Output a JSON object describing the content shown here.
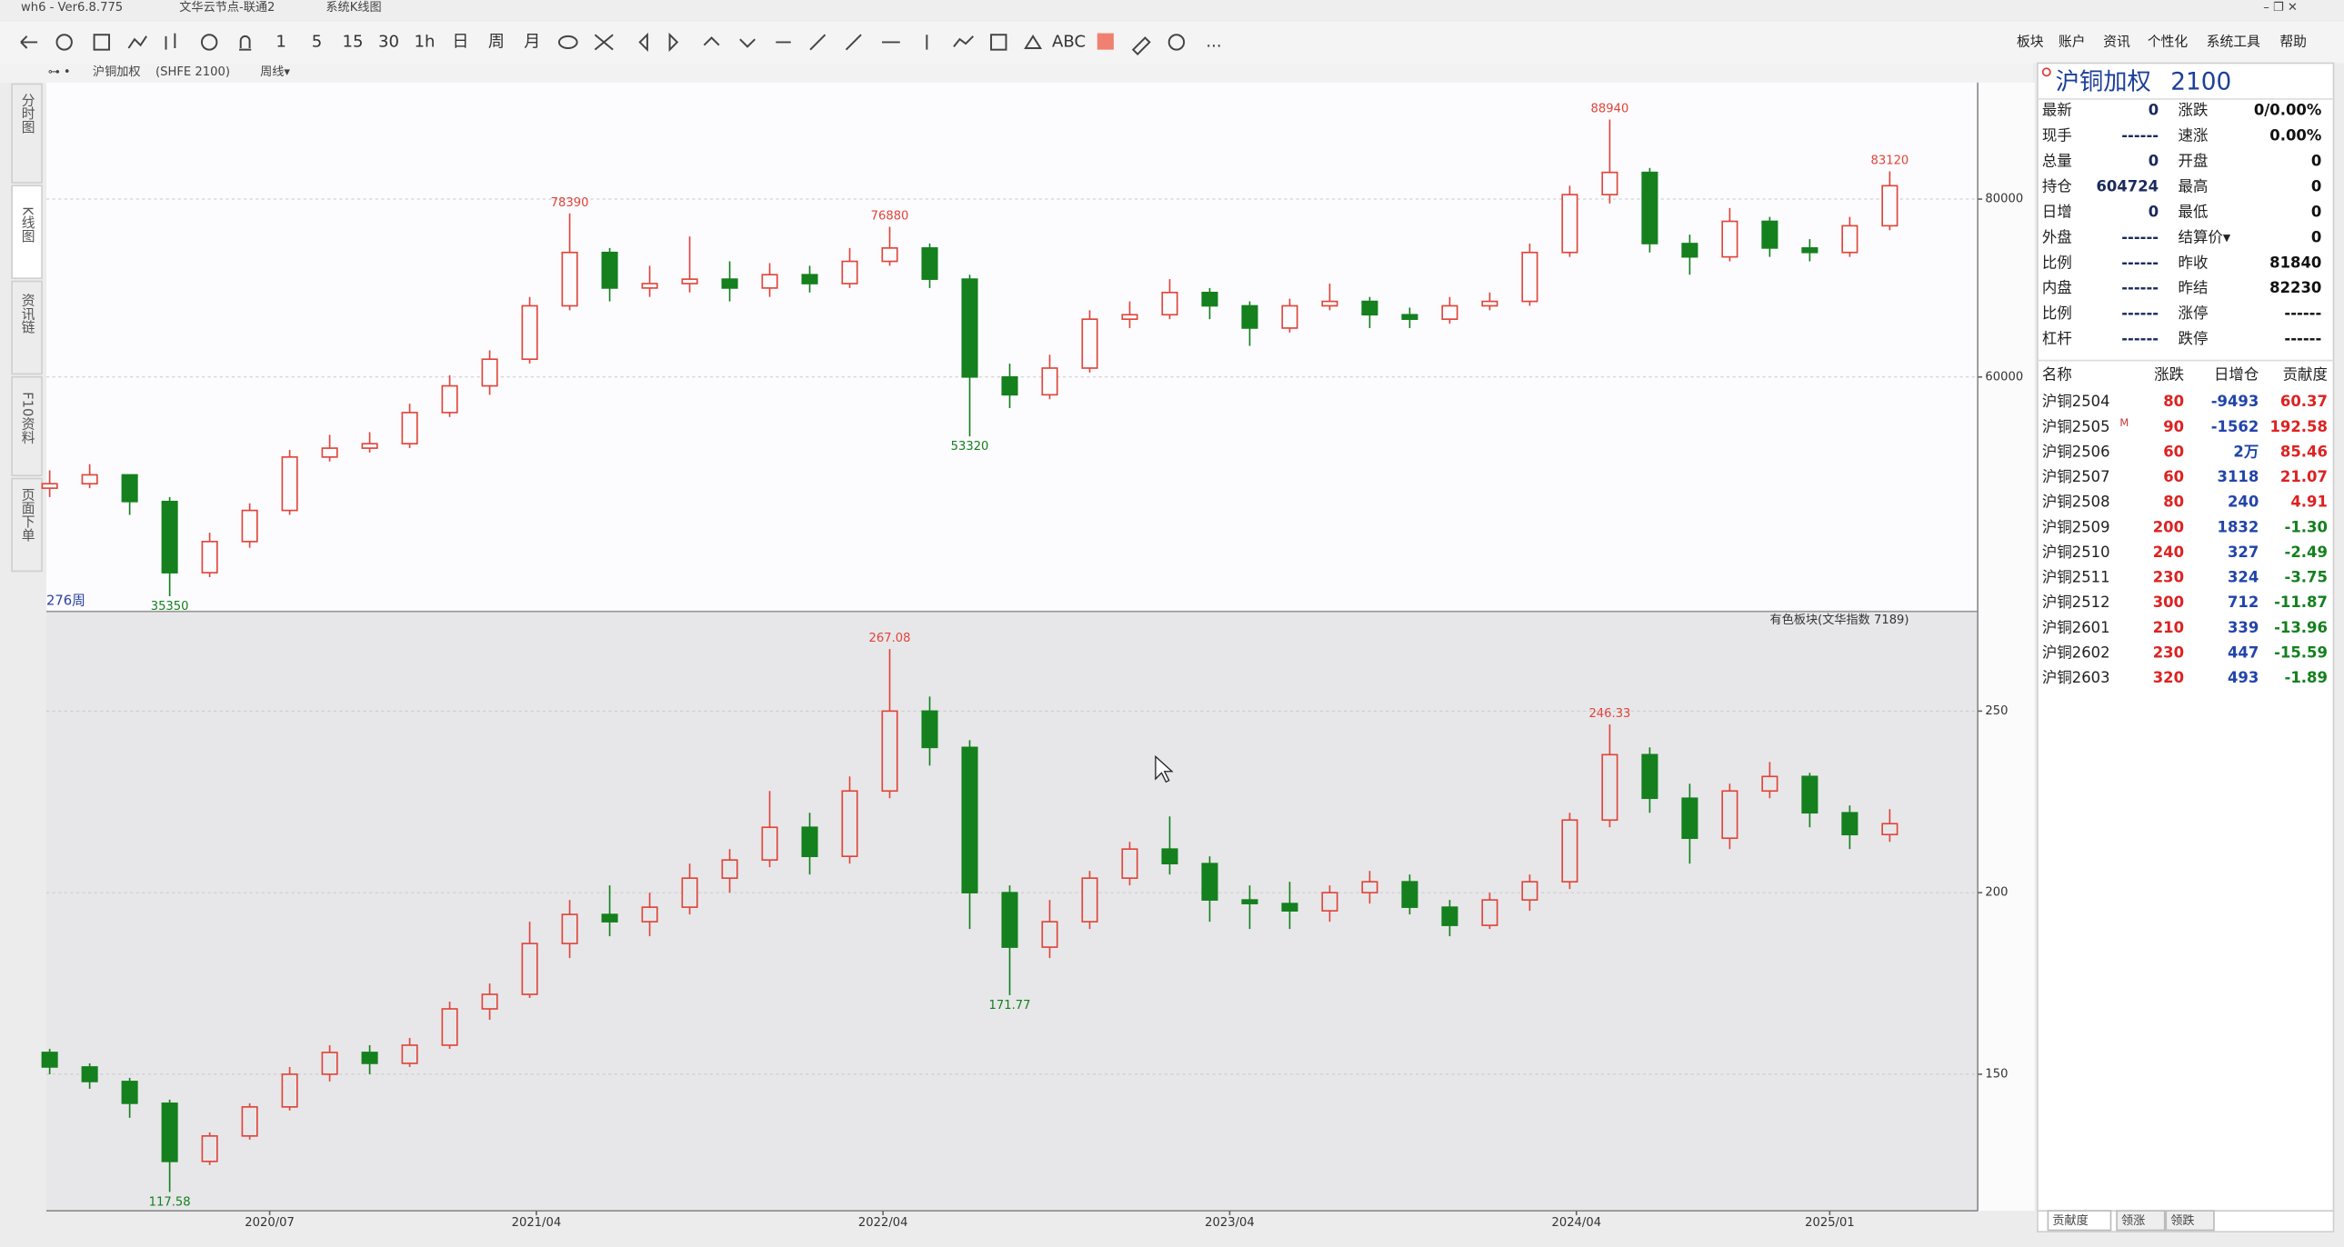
{
  "window": {
    "title": "wh6 - Ver6.8.775",
    "node": "文华云节点-联通2",
    "view": "系统K线图",
    "menus": [
      "板块",
      "账户",
      "资讯",
      "个性化",
      "系统工具",
      "帮助"
    ]
  },
  "toolbar": [
    "1",
    "5",
    "15",
    "30",
    "1h",
    "日",
    "周",
    "月",
    "ABC",
    "..."
  ],
  "side_tabs": [
    "分时图",
    "K线图",
    "资讯链",
    "F10资料",
    "页面下单"
  ],
  "header": {
    "symbol": "沪铜加权",
    "code": "(SHFE 2100)",
    "period": "周线▾"
  },
  "bar_count": "276周",
  "chart_data": [
    {
      "type": "candlestick",
      "up_color": "#e0443a",
      "down_color": "#14801e",
      "background": "#fcfcfe",
      "grid": true,
      "xlim": [
        -0.5,
        289.2
      ],
      "ylim": [
        33800,
        93100
      ],
      "yticks": [
        60000,
        80000
      ],
      "x": [
        0,
        6,
        12,
        18,
        24,
        30,
        36,
        42,
        48,
        54,
        60,
        66,
        72,
        78,
        84,
        90,
        96,
        102,
        108,
        114,
        120,
        126,
        132,
        138,
        144,
        150,
        156,
        162,
        168,
        174,
        180,
        186,
        192,
        198,
        204,
        210,
        216,
        222,
        228,
        234,
        240,
        246,
        252,
        258,
        264,
        270,
        276
      ],
      "open": [
        47500,
        48000,
        49000,
        46000,
        38000,
        41500,
        45000,
        51000,
        52000,
        52500,
        56000,
        59000,
        62000,
        68000,
        74000,
        70000,
        70500,
        71000,
        70000,
        71500,
        70500,
        73000,
        74500,
        71000,
        60000,
        58000,
        61000,
        66500,
        67000,
        69500,
        68000,
        65500,
        68000,
        68500,
        67000,
        66500,
        68000,
        68500,
        74000,
        80500,
        83000,
        75000,
        73500,
        77500,
        74500,
        74000,
        77000
      ],
      "high": [
        49500,
        50200,
        49000,
        46500,
        42500,
        45800,
        51800,
        53500,
        53800,
        57000,
        60200,
        63000,
        69000,
        78390,
        74500,
        72500,
        75800,
        73000,
        72800,
        72500,
        74500,
        76880,
        75000,
        71500,
        61500,
        62500,
        67500,
        68500,
        71000,
        70000,
        68500,
        68800,
        70500,
        69000,
        67800,
        69000,
        69500,
        75000,
        81500,
        88940,
        83500,
        76000,
        79000,
        78000,
        75500,
        78000,
        83120
      ],
      "low": [
        46500,
        47500,
        44500,
        35350,
        37500,
        40800,
        44500,
        50500,
        51500,
        52000,
        55500,
        58000,
        61500,
        67500,
        68500,
        69000,
        69500,
        68500,
        69000,
        69500,
        70000,
        72500,
        70000,
        53320,
        56500,
        57500,
        60500,
        65500,
        66500,
        66500,
        63500,
        65000,
        67500,
        65500,
        65500,
        66000,
        67500,
        68000,
        73500,
        79500,
        74000,
        71500,
        73000,
        73500,
        73000,
        73500,
        76500
      ],
      "close": [
        48000,
        49000,
        46000,
        38000,
        41500,
        45000,
        51000,
        52000,
        52500,
        56000,
        59000,
        62000,
        68000,
        74000,
        70000,
        70500,
        71000,
        70000,
        71500,
        70500,
        73000,
        74500,
        71000,
        60000,
        58000,
        61000,
        66500,
        67000,
        69500,
        68000,
        65500,
        68000,
        68500,
        67000,
        66500,
        68000,
        68500,
        74000,
        80500,
        83000,
        75000,
        73500,
        77500,
        74500,
        74000,
        77000,
        81500
      ],
      "annotations": [
        {
          "x": 78,
          "value": 78390,
          "position": "above"
        },
        {
          "x": 126,
          "value": 76880,
          "position": "above"
        },
        {
          "x": 234,
          "value": 88940,
          "position": "above"
        },
        {
          "x": 276,
          "value": 83120,
          "position": "above"
        },
        {
          "x": 138,
          "value": 53320,
          "position": "below"
        },
        {
          "x": 18,
          "value": 35350,
          "position": "below"
        }
      ]
    },
    {
      "type": "candlestick",
      "title": "有色板块(文华指数 7189)",
      "up_color": "#e0443a",
      "down_color": "#14801e",
      "background": "#e7e7e9",
      "grid": true,
      "xlim": [
        -0.5,
        289.2
      ],
      "ylim": [
        112.4,
        277
      ],
      "yticks": [
        150,
        200,
        250
      ],
      "xticks": [
        {
          "value": 33,
          "label": "2020/07"
        },
        {
          "value": 73,
          "label": "2021/04"
        },
        {
          "value": 125,
          "label": "2022/04"
        },
        {
          "value": 177,
          "label": "2023/04"
        },
        {
          "value": 229,
          "label": "2024/04"
        },
        {
          "value": 267,
          "label": "2025/01"
        }
      ],
      "x": [
        0,
        6,
        12,
        18,
        24,
        30,
        36,
        42,
        48,
        54,
        60,
        66,
        72,
        78,
        84,
        90,
        96,
        102,
        108,
        114,
        120,
        126,
        132,
        138,
        144,
        150,
        156,
        162,
        168,
        174,
        180,
        186,
        192,
        198,
        204,
        210,
        216,
        222,
        228,
        234,
        240,
        246,
        252,
        258,
        264,
        270,
        276
      ],
      "open": [
        156,
        152,
        148,
        142,
        126,
        133,
        141,
        150,
        156,
        153,
        158,
        168,
        172,
        186,
        194,
        192,
        196,
        204,
        209,
        218,
        210,
        228,
        250,
        240,
        200,
        185,
        192,
        204,
        212,
        208,
        198,
        197,
        195,
        200,
        203,
        196,
        191,
        198,
        203,
        220,
        238,
        226,
        215,
        228,
        232,
        222,
        216
      ],
      "high": [
        157,
        153,
        149,
        143,
        134,
        142,
        152,
        158,
        158,
        160,
        170,
        175,
        192,
        198,
        202,
        200,
        208,
        212,
        228,
        222,
        232,
        267.08,
        254,
        242,
        202,
        198,
        206,
        214,
        221,
        210,
        202,
        203,
        202,
        206,
        205,
        198,
        200,
        205,
        222,
        246.33,
        240,
        230,
        230,
        236,
        233,
        224,
        223
      ],
      "low": [
        150,
        146,
        138,
        117.58,
        125,
        132,
        140,
        148,
        150,
        152,
        157,
        165,
        171,
        182,
        188,
        188,
        194,
        200,
        207,
        205,
        208,
        226,
        235,
        190,
        171.77,
        182,
        190,
        202,
        205,
        192,
        190,
        190,
        192,
        197,
        194,
        188,
        190,
        195,
        201,
        218,
        222,
        208,
        212,
        226,
        218,
        212,
        214
      ],
      "close": [
        152,
        148,
        142,
        126,
        133,
        141,
        150,
        156,
        153,
        158,
        168,
        172,
        186,
        194,
        192,
        196,
        204,
        209,
        218,
        210,
        228,
        250,
        240,
        200,
        185,
        192,
        204,
        212,
        208,
        198,
        197,
        195,
        200,
        203,
        196,
        191,
        198,
        203,
        220,
        238,
        226,
        215,
        228,
        232,
        222,
        216,
        219
      ],
      "annotations": [
        {
          "x": 126,
          "value": 267.08,
          "position": "above"
        },
        {
          "x": 234,
          "value": 246.33,
          "position": "above"
        },
        {
          "x": 144,
          "value": 171.77,
          "position": "below"
        },
        {
          "x": 18,
          "value": 117.58,
          "position": "below"
        }
      ]
    }
  ],
  "quote": {
    "name": "沪铜加权",
    "code": "2100",
    "rows": [
      [
        "最新",
        "0",
        "涨跌",
        "0/0.00%"
      ],
      [
        "现手",
        "------",
        "速涨",
        "0.00%"
      ],
      [
        "总量",
        "0",
        "开盘",
        "0"
      ],
      [
        "持仓",
        "604724",
        "最高",
        "0"
      ],
      [
        "日增",
        "0",
        "最低",
        "0"
      ],
      [
        "外盘",
        "------",
        "结算价▾",
        "0"
      ],
      [
        "比例",
        "------",
        "昨收",
        "81840"
      ],
      [
        "内盘",
        "------",
        "昨结",
        "82230"
      ],
      [
        "比例",
        "------",
        "涨停",
        "------"
      ],
      [
        "杠杆",
        "------",
        "跌停",
        "------"
      ]
    ]
  },
  "contracts": {
    "header": [
      "名称",
      "涨跌",
      "日增仓",
      "贡献度"
    ],
    "badge": "M",
    "rows": [
      [
        "沪铜2504",
        "80",
        "-9493",
        "60.37"
      ],
      [
        "沪铜2505",
        "90",
        "-1562",
        "192.58"
      ],
      [
        "沪铜2506",
        "60",
        "2万",
        "85.46"
      ],
      [
        "沪铜2507",
        "60",
        "3118",
        "21.07"
      ],
      [
        "沪铜2508",
        "80",
        "240",
        "4.91"
      ],
      [
        "沪铜2509",
        "200",
        "1832",
        "-1.30"
      ],
      [
        "沪铜2510",
        "240",
        "327",
        "-2.49"
      ],
      [
        "沪铜2511",
        "230",
        "324",
        "-3.75"
      ],
      [
        "沪铜2512",
        "300",
        "712",
        "-11.87"
      ],
      [
        "沪铜2601",
        "210",
        "339",
        "-13.96"
      ],
      [
        "沪铜2602",
        "230",
        "447",
        "-15.59"
      ],
      [
        "沪铜2603",
        "320",
        "493",
        "-1.89"
      ]
    ]
  },
  "tabs": [
    "贡献度",
    "领涨",
    "领跌"
  ]
}
